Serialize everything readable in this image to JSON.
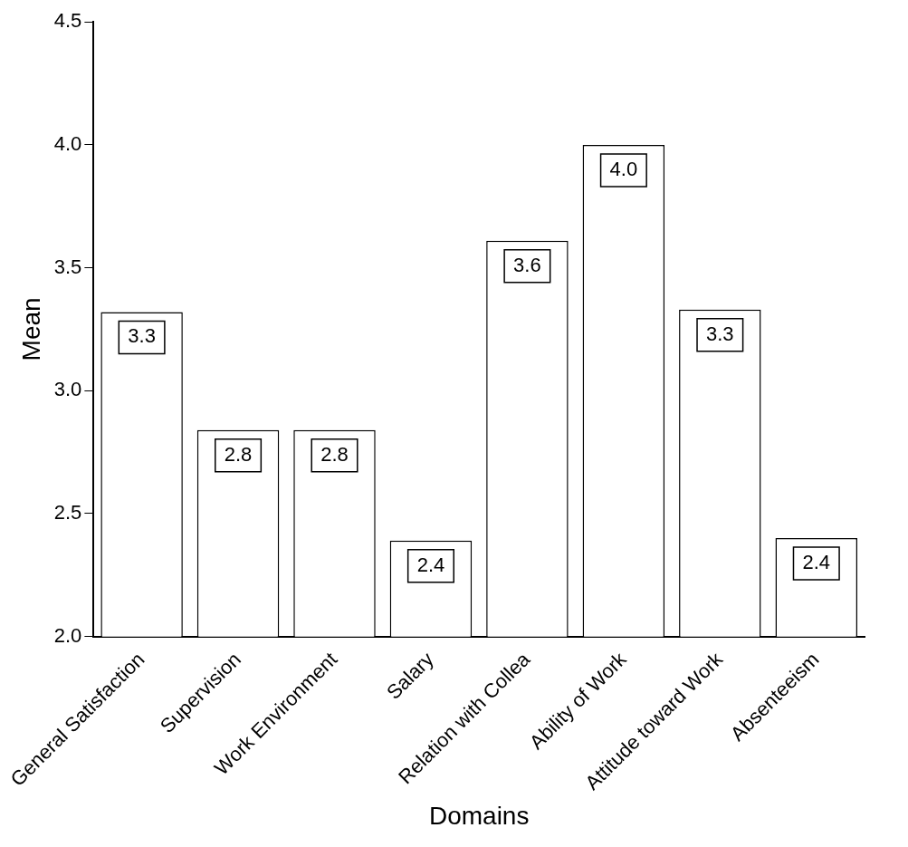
{
  "chart_data": {
    "type": "bar",
    "xlabel": "Domains",
    "ylabel": "Mean",
    "categories": [
      "General Satisfaction",
      "Supervision",
      "Work Environment",
      "Salary",
      "Relation with Collea",
      "Ability of Work",
      "Attitude toward Work",
      "Absenteeism"
    ],
    "values": [
      3.32,
      2.84,
      2.84,
      2.39,
      3.61,
      4.0,
      3.33,
      2.4
    ],
    "value_labels": [
      "3.3",
      "2.8",
      "2.8",
      "2.4",
      "3.6",
      "4.0",
      "3.3",
      "2.4"
    ],
    "color": "#ffffff",
    "ylim": [
      2,
      4.5
    ],
    "yticks": [
      {
        "value": 2,
        "label": "2.0"
      },
      {
        "value": 2.5,
        "label": "2.5"
      },
      {
        "value": 3,
        "label": "3.0"
      },
      {
        "value": 3.5,
        "label": "3.5"
      },
      {
        "value": 4,
        "label": "4.0"
      },
      {
        "value": 4.5,
        "label": "4.5"
      }
    ],
    "grid": false
  }
}
